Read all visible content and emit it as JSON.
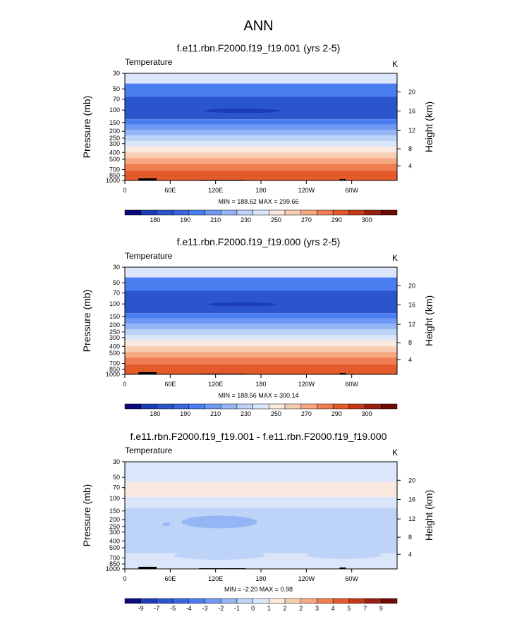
{
  "title": "ANN",
  "chart_data": [
    {
      "type": "heatmap",
      "title": "f.e11.rbn.F2000.f19_f19.001 (yrs 2-5)",
      "variable": "Temperature",
      "units": "K",
      "ylabel": "Pressure (mb)",
      "ylabel_right": "Height (km)",
      "xticks": [
        "0",
        "60E",
        "120E",
        "180",
        "120W",
        "60W"
      ],
      "yticks": [
        "30",
        "50",
        "70",
        "100",
        "150",
        "200",
        "250",
        "300",
        "400",
        "500",
        "700",
        "850",
        "1000"
      ],
      "yticks_right": [
        "20",
        "16",
        "12",
        "8",
        "4"
      ],
      "min_max_text": "MIN = 188.62  MAX = 299.66",
      "colorbar_labels": [
        "180",
        "190",
        "210",
        "230",
        "250",
        "270",
        "290",
        "300"
      ],
      "colorbar_colors": [
        "#0a0a78",
        "#1a3cb8",
        "#2a55cc",
        "#3a66e0",
        "#4a7ef0",
        "#6f99f3",
        "#95b6f5",
        "#bdd3f8",
        "#dbe6fb",
        "#fae9de",
        "#f8ceb3",
        "#f5a882",
        "#f07e52",
        "#e55a2a",
        "#c43a18",
        "#98200e",
        "#6e0a05"
      ],
      "bands": [
        {
          "p0": 28,
          "p1": 42,
          "color": "#dbe6fb"
        },
        {
          "p0": 42,
          "p1": 65,
          "color": "#4a7ef0"
        },
        {
          "p0": 65,
          "p1": 135,
          "color": "#2a55cc"
        },
        {
          "p0": 135,
          "p1": 160,
          "color": "#4a7ef0"
        },
        {
          "p0": 160,
          "p1": 190,
          "color": "#6f99f3"
        },
        {
          "p0": 190,
          "p1": 230,
          "color": "#95b6f5"
        },
        {
          "p0": 230,
          "p1": 275,
          "color": "#bdd3f8"
        },
        {
          "p0": 275,
          "p1": 330,
          "color": "#dbe6fb"
        },
        {
          "p0": 330,
          "p1": 400,
          "color": "#fae9de"
        },
        {
          "p0": 400,
          "p1": 480,
          "color": "#f8ceb3"
        },
        {
          "p0": 480,
          "p1": 580,
          "color": "#f5a882"
        },
        {
          "p0": 580,
          "p1": 720,
          "color": "#f07e52"
        },
        {
          "p0": 720,
          "p1": 1000,
          "color": "#e55a2a"
        }
      ],
      "blobs": [
        {
          "lon0": 105,
          "lon1": 205,
          "p0": 95,
          "p1": 110,
          "color": "#1a3cb8"
        }
      ]
    },
    {
      "type": "heatmap",
      "title": "f.e11.rbn.F2000.f19_f19.000 (yrs 2-5)",
      "variable": "Temperature",
      "units": "K",
      "ylabel": "Pressure (mb)",
      "ylabel_right": "Height (km)",
      "xticks": [
        "0",
        "60E",
        "120E",
        "180",
        "120W",
        "60W"
      ],
      "yticks": [
        "30",
        "50",
        "70",
        "100",
        "150",
        "200",
        "250",
        "300",
        "400",
        "500",
        "700",
        "850",
        "1000"
      ],
      "yticks_right": [
        "20",
        "16",
        "12",
        "8",
        "4"
      ],
      "min_max_text": "MIN = 188.56  MAX = 300.14",
      "colorbar_labels": [
        "180",
        "190",
        "210",
        "230",
        "250",
        "270",
        "290",
        "300"
      ],
      "colorbar_colors": [
        "#0a0a78",
        "#1a3cb8",
        "#2a55cc",
        "#3a66e0",
        "#4a7ef0",
        "#6f99f3",
        "#95b6f5",
        "#bdd3f8",
        "#dbe6fb",
        "#fae9de",
        "#f8ceb3",
        "#f5a882",
        "#f07e52",
        "#e55a2a",
        "#c43a18",
        "#98200e",
        "#6e0a05"
      ],
      "bands": [
        {
          "p0": 28,
          "p1": 42,
          "color": "#dbe6fb"
        },
        {
          "p0": 42,
          "p1": 65,
          "color": "#4a7ef0"
        },
        {
          "p0": 65,
          "p1": 135,
          "color": "#2a55cc"
        },
        {
          "p0": 135,
          "p1": 160,
          "color": "#4a7ef0"
        },
        {
          "p0": 160,
          "p1": 190,
          "color": "#6f99f3"
        },
        {
          "p0": 190,
          "p1": 230,
          "color": "#95b6f5"
        },
        {
          "p0": 230,
          "p1": 275,
          "color": "#bdd3f8"
        },
        {
          "p0": 275,
          "p1": 330,
          "color": "#dbe6fb"
        },
        {
          "p0": 330,
          "p1": 400,
          "color": "#fae9de"
        },
        {
          "p0": 400,
          "p1": 480,
          "color": "#f8ceb3"
        },
        {
          "p0": 480,
          "p1": 580,
          "color": "#f5a882"
        },
        {
          "p0": 580,
          "p1": 720,
          "color": "#f07e52"
        },
        {
          "p0": 720,
          "p1": 1000,
          "color": "#e55a2a"
        }
      ],
      "blobs": [
        {
          "lon0": 110,
          "lon1": 200,
          "p0": 95,
          "p1": 108,
          "color": "#1a3cb8"
        }
      ]
    },
    {
      "type": "heatmap",
      "title": "f.e11.rbn.F2000.f19_f19.001 - f.e11.rbn.F2000.f19_f19.000",
      "variable": "Temperature",
      "units": "K",
      "ylabel": "Pressure (mb)",
      "ylabel_right": "Height (km)",
      "xticks": [
        "0",
        "60E",
        "120E",
        "180",
        "120W",
        "60W"
      ],
      "yticks": [
        "30",
        "50",
        "70",
        "100",
        "150",
        "200",
        "250",
        "300",
        "400",
        "500",
        "700",
        "850",
        "1000"
      ],
      "yticks_right": [
        "20",
        "16",
        "12",
        "8",
        "4"
      ],
      "min_max_text": "MIN = -2.20  MAX =  0.98",
      "colorbar_labels": [
        "-9",
        "-7",
        "-5",
        "-4",
        "-3",
        "-2",
        "-1",
        "0",
        "1",
        "2",
        "2",
        "3",
        "4",
        "5",
        "7",
        "9"
      ],
      "colorbar_colors": [
        "#0a0a78",
        "#1a3cb8",
        "#2a55cc",
        "#3a66e0",
        "#4a7ef0",
        "#6f99f3",
        "#95b6f5",
        "#bdd3f8",
        "#dbe6fb",
        "#fae9de",
        "#f8ceb3",
        "#f5a882",
        "#f07e52",
        "#e55a2a",
        "#c43a18",
        "#98200e",
        "#6e0a05"
      ],
      "bands": [
        {
          "p0": 28,
          "p1": 58,
          "color": "#dbe6fb"
        },
        {
          "p0": 58,
          "p1": 95,
          "color": "#fae9de"
        },
        {
          "p0": 95,
          "p1": 135,
          "color": "#dbe6fb"
        },
        {
          "p0": 135,
          "p1": 600,
          "color": "#bdd3f8"
        },
        {
          "p0": 600,
          "p1": 1000,
          "color": "#dbe6fb"
        }
      ],
      "blobs": [
        {
          "lon0": 75,
          "lon1": 175,
          "p0": 175,
          "p1": 265,
          "color": "#95b6f5"
        },
        {
          "lon0": 50,
          "lon1": 60,
          "p0": 220,
          "p1": 245,
          "color": "#95b6f5"
        },
        {
          "lon0": 65,
          "lon1": 185,
          "p0": 560,
          "p1": 740,
          "color": "#bdd3f8"
        },
        {
          "lon0": 240,
          "lon1": 340,
          "p0": 560,
          "p1": 720,
          "color": "#bdd3f8"
        }
      ]
    }
  ]
}
